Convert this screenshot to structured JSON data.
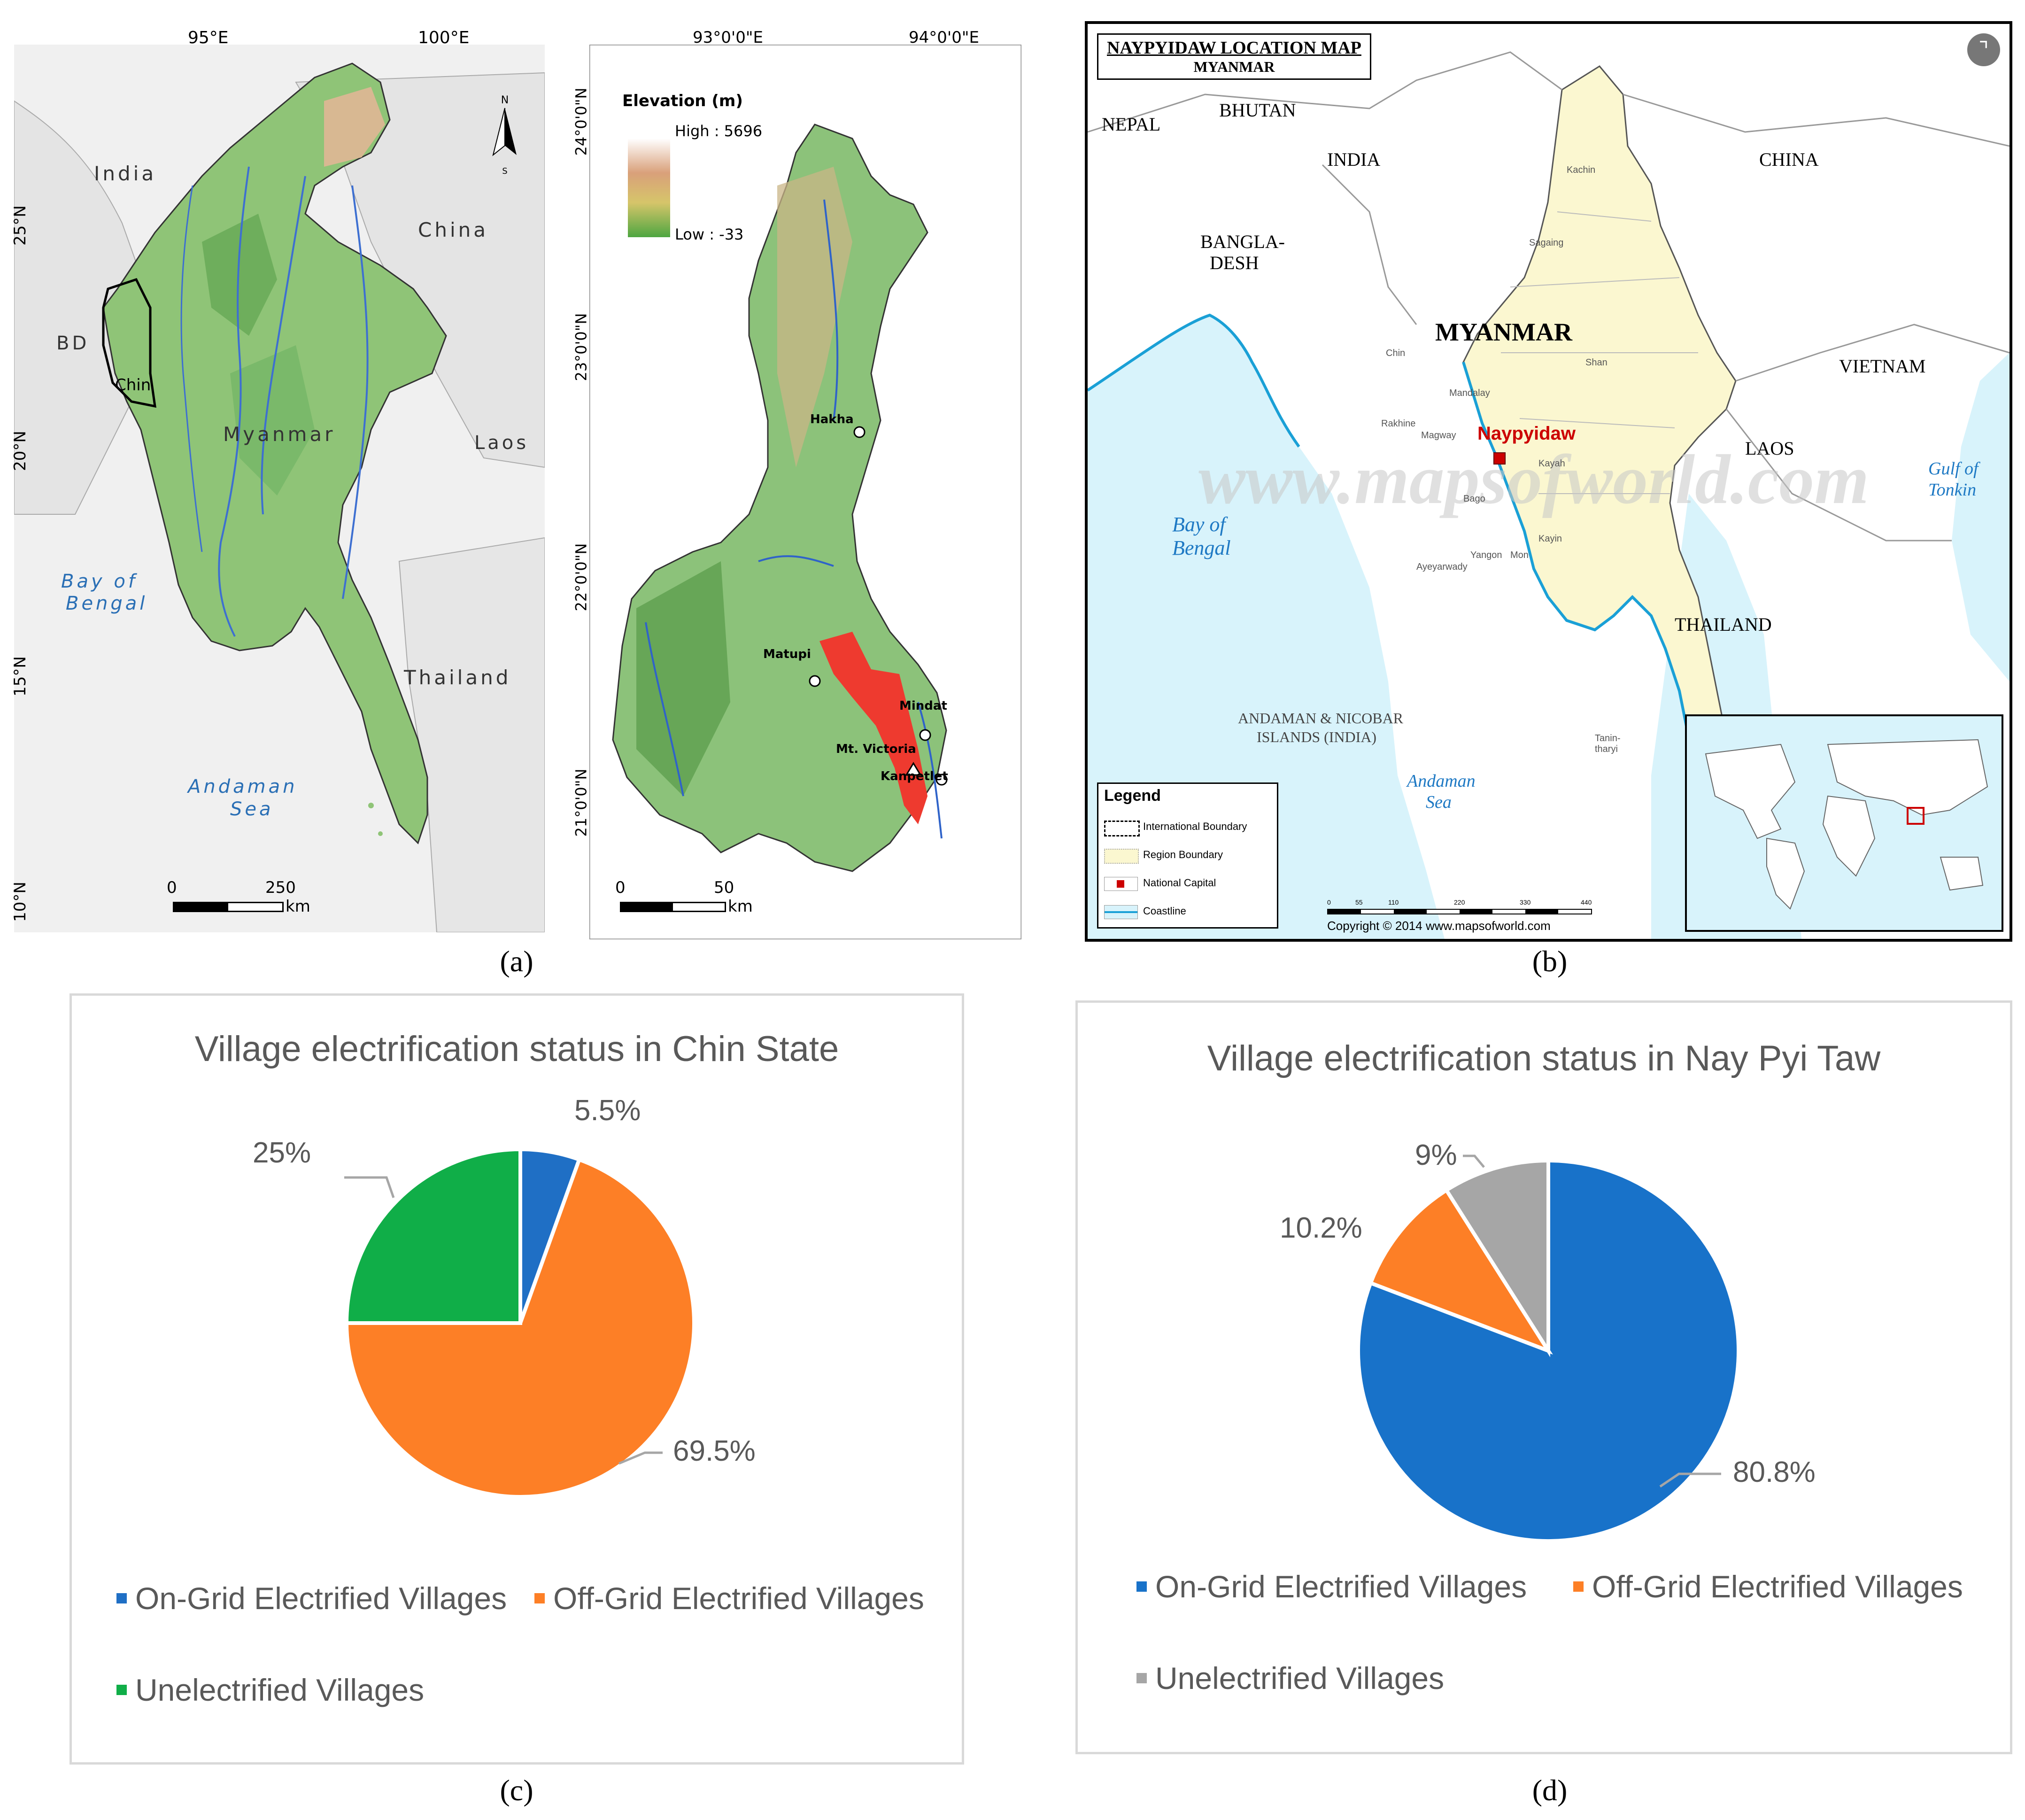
{
  "panels": {
    "a": {
      "label": "(a)"
    },
    "b": {
      "label": "(b)"
    },
    "c": {
      "label": "(c)"
    },
    "d": {
      "label": "(d)"
    }
  },
  "map_a": {
    "left": {
      "lon_ticks": [
        "95°E",
        "100°E"
      ],
      "lat_ticks": [
        "25°N",
        "20°N",
        "15°N",
        "10°N"
      ],
      "places": {
        "india": "India",
        "china": "China",
        "bd": "BD",
        "chin": "Chin",
        "myanmar": "Myanmar",
        "laos": "Laos",
        "thailand": "Thailand",
        "bay1": "Bay of",
        "bay2": "Bengal",
        "andaman1": "Andaman",
        "andaman2": "Sea"
      },
      "north": "N",
      "south": "S",
      "scale": {
        "zero": "0",
        "value": "250",
        "unit": "km"
      }
    },
    "right": {
      "lon_ticks": [
        "93°0'0\"E",
        "94°0'0\"E"
      ],
      "lat_ticks": [
        "24°0'0\"N",
        "23°0'0\"N",
        "22°0'0\"N",
        "21°0'0\"N"
      ],
      "legend_title": "Elevation (m)",
      "legend_high": "High : 5696",
      "legend_low": "Low : -33",
      "towns": {
        "hakha": "Hakha",
        "matupi": "Matupi",
        "mindat": "Mindat",
        "victoria": "Mt. Victoria",
        "kanpetlet": "Kanpetlet"
      },
      "scale": {
        "zero": "0",
        "value": "50",
        "unit": "km"
      }
    }
  },
  "map_b": {
    "title": "NAYPYIDAW LOCATION MAP",
    "subtitle": "MYANMAR",
    "countries": {
      "nepal": "NEPAL",
      "bhutan": "BHUTAN",
      "india": "INDIA",
      "china": "CHINA",
      "bangla1": "BANGLA-",
      "bangla2": "DESH",
      "myanmar": "MYANMAR",
      "vietnam": "VIETNAM",
      "laos": "LAOS",
      "thailand": "THAILAND"
    },
    "waters": {
      "bay1": "Bay of",
      "bay2": "Bengal",
      "gulf1": "Gulf of",
      "gulf2": "Tonkin",
      "andaman1": "Andaman",
      "andaman2": "Sea",
      "islands1": "ANDAMAN & NICOBAR",
      "islands2": "ISLANDS (INDIA)"
    },
    "capital": "Naypyidaw",
    "regions": {
      "kachin": "Kachin",
      "sagaing": "Sagaing",
      "chin": "Chin",
      "shan": "Shan",
      "mandalay": "Mandalay",
      "magway": "Magway",
      "rakhine": "Rakhine",
      "kayah": "Kayah",
      "bago": "Bago",
      "kayin": "Kayin",
      "mon": "Mon",
      "yangon": "Yangon",
      "ayeyarwady": "Ayeyarwady",
      "tanintharyi": "Tanin-tharyi"
    },
    "watermark": "www.mapsofworld.com",
    "copyright": "Copyright © 2014 www.mapsofworld.com",
    "legend": {
      "title": "Legend",
      "items": [
        "International Boundary",
        "Region Boundary",
        "National Capital",
        "Coastline"
      ]
    },
    "scale_ticks": [
      "0",
      "55",
      "110",
      "220",
      "330",
      "440"
    ],
    "colors": {
      "myanmar": "#fbf7d0",
      "sea": "#d8f3fb",
      "coast": "#1aa0d6",
      "capital": "#cc0000"
    }
  },
  "chart_c": {
    "title": "Village electrification status in Chin State",
    "labels": [
      "5.5%",
      "69.5%",
      "25%"
    ],
    "legend": [
      "On-Grid Electrified Villages",
      "Off-Grid Electrified Villages",
      "Unelectrified Villages"
    ]
  },
  "chart_d": {
    "title": "Village electrification status in Nay Pyi Taw",
    "labels": [
      "80.8%",
      "10.2%",
      "9%"
    ],
    "legend": [
      "On-Grid Electrified Villages",
      "Off-Grid Electrified Villages",
      "Unelectrified Villages"
    ]
  },
  "chart_data": [
    {
      "type": "pie",
      "title": "Village electrification status in Chin State",
      "categories": [
        "On-Grid Electrified Villages",
        "Off-Grid Electrified Villages",
        "Unelectrified Villages"
      ],
      "values": [
        5.5,
        69.5,
        25
      ],
      "colors": [
        "#1f6fc5",
        "#fd7f26",
        "#10ae48"
      ],
      "legend_position": "bottom"
    },
    {
      "type": "pie",
      "title": "Village electrification status in Nay Pyi Taw",
      "categories": [
        "On-Grid Electrified Villages",
        "Off-Grid Electrified Villages",
        "Unelectrified Villages"
      ],
      "values": [
        80.8,
        10.2,
        9
      ],
      "colors": [
        "#1872c9",
        "#fd7f26",
        "#a6a6a6"
      ],
      "legend_position": "bottom"
    }
  ]
}
